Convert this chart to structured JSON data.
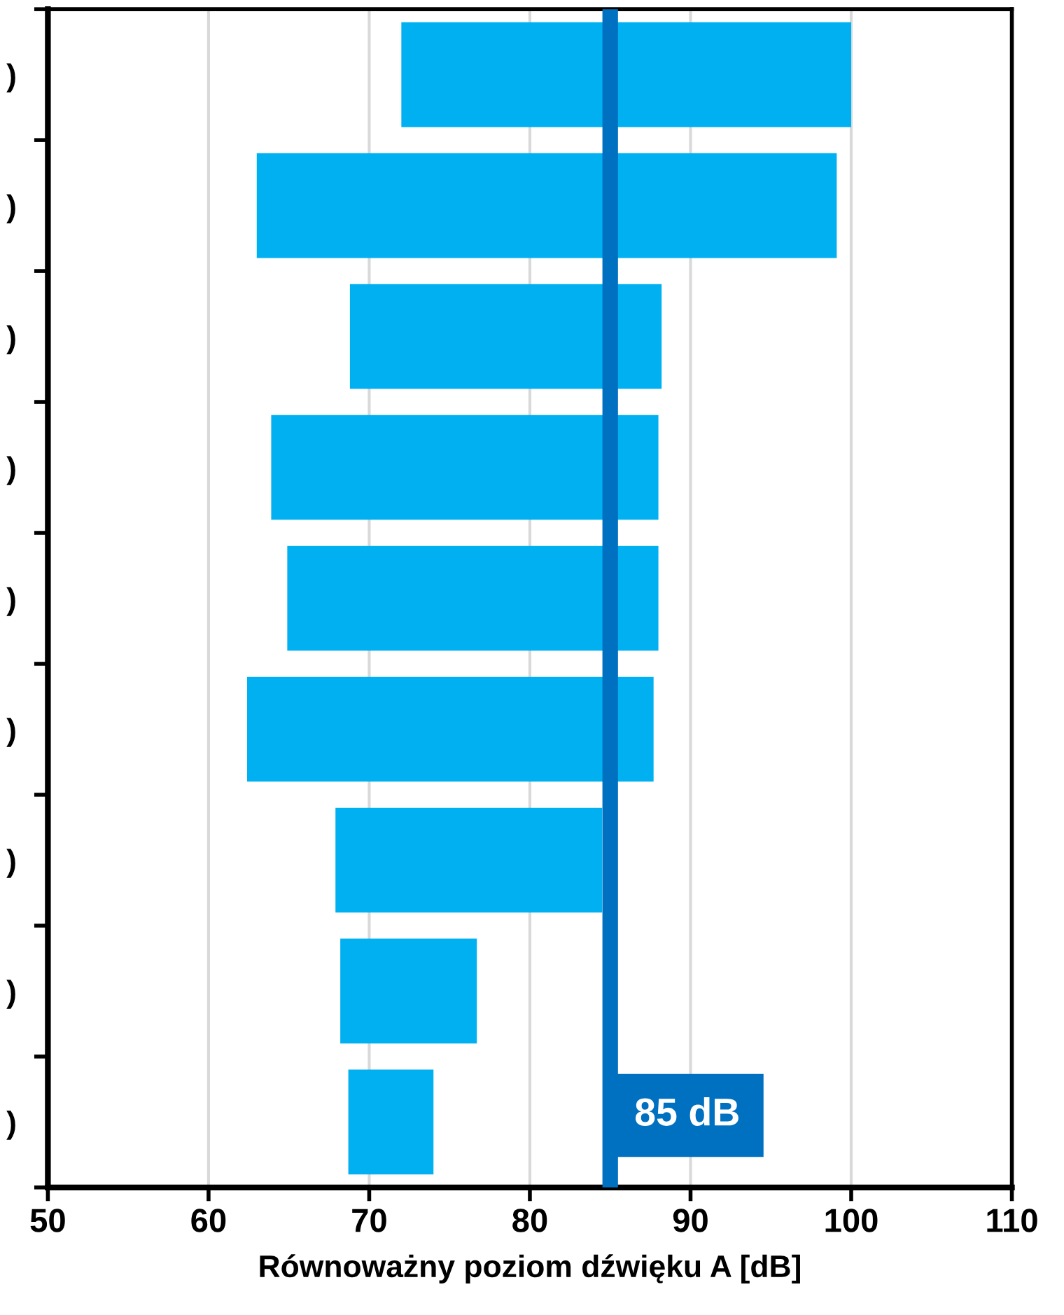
{
  "chart_data": {
    "type": "bar",
    "orientation": "horizontal",
    "xlabel": "Równoważny poziom dźwięku A [dB]",
    "categories": [
      ")",
      ")",
      ")",
      ")",
      ")",
      ")",
      ")",
      ")",
      ")"
    ],
    "base": [
      72,
      63,
      68.8,
      63.9,
      64.9,
      62.4,
      67.9,
      68.2,
      68.7
    ],
    "values": [
      28,
      36.1,
      19.4,
      24.1,
      23.1,
      25.3,
      16.6,
      8.5,
      5.3
    ],
    "color": "#00b0f0",
    "xlim": [
      50,
      110
    ],
    "xticks": [
      50,
      60,
      70,
      80,
      90,
      100,
      110
    ],
    "grid": "x",
    "ref_lines": [
      {
        "axis": "x",
        "value": 85,
        "label": "85 dB",
        "color": "#0070c0"
      }
    ]
  }
}
